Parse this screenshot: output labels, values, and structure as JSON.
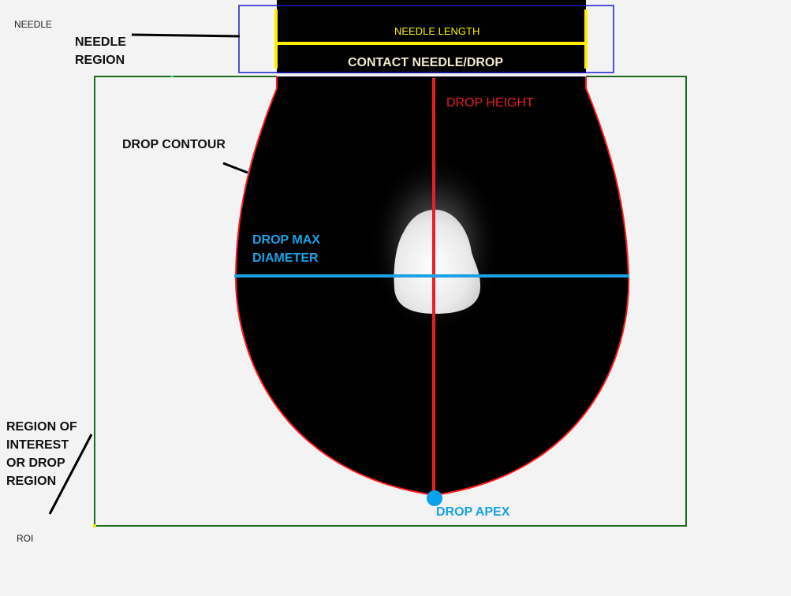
{
  "labels": {
    "needle": "NEEDLE",
    "needle_region_1": "NEEDLE",
    "needle_region_2": "REGION",
    "needle_length": "NEEDLE LENGTH",
    "contact": "CONTACT NEEDLE/DROP",
    "drop_height": "DROP HEIGHT",
    "drop_contour": "DROP CONTOUR",
    "drop_max_1": "DROP MAX",
    "drop_max_2": "DIAMETER",
    "roi_1": "REGION OF",
    "roi_2": "INTEREST",
    "roi_3": "OR DROP",
    "roi_4": "REGION",
    "roi": "ROI",
    "drop_apex": "DROP APEX"
  },
  "colors": {
    "background": "#f3f3f3",
    "drop": "#000000",
    "contour": "#ff1a1a",
    "needle_length": "#ffee00",
    "needle_region_box": "#1a1acc",
    "roi_box": "#1e6b1e",
    "max_diameter": "#19a2e6",
    "drop_height": "#e82020",
    "apex": "#0aa0ea",
    "contact_text": "#f3ead0"
  }
}
